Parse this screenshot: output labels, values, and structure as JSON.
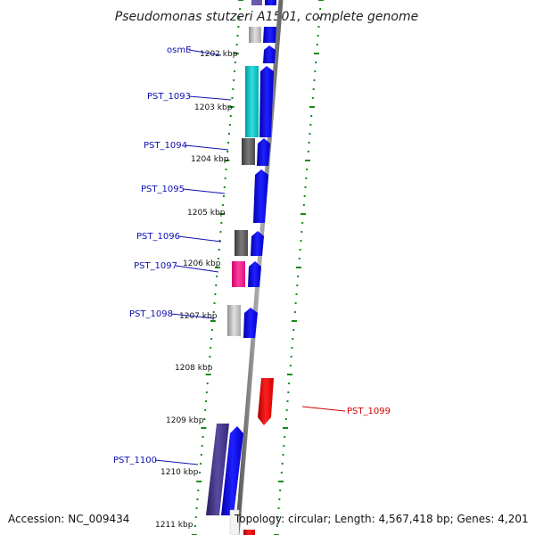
{
  "title": "Pseudomonas stutzeri A1501, complete genome",
  "footer": {
    "accession": "Accession: NC_009434",
    "topology": "Topology: circular; Length: 4,567,418 bp; Genes: 4,201"
  },
  "kbp_ticks": [
    "1202 kbp",
    "1203 kbp",
    "1204 kbp",
    "1205 kbp",
    "1206 kbp",
    "1207 kbp",
    "1208 kbp",
    "1209 kbp",
    "1210 kbp",
    "1211 kbp"
  ],
  "genes": [
    {
      "label": "osmE",
      "color": "#0000ee",
      "cog_color": null
    },
    {
      "label": "PST_1093",
      "color": "#0000ee",
      "cog_color": "#00c0c0"
    },
    {
      "label": "PST_1094",
      "color": "#0000ee",
      "cog_color": "#555555"
    },
    {
      "label": "PST_1095",
      "color": "#0000ee",
      "cog_color": null
    },
    {
      "label": "PST_1096",
      "color": "#0000ee",
      "cog_color": "#555555"
    },
    {
      "label": "PST_1097",
      "color": "#0000ee",
      "cog_color": "#ff1493"
    },
    {
      "label": "PST_1098",
      "color": "#0000ee",
      "cog_color": "#b0b0b0"
    },
    {
      "label": "PST_1099",
      "color": "#ee0000",
      "cog_color": null
    },
    {
      "label": "PST_1100",
      "color": "#0000ee",
      "cog_color": "#3d2f7a"
    }
  ],
  "colors": {
    "backbone": "#8a8a8a",
    "gc_dots": "#1a8a1a",
    "forward_gene": "#0000ee",
    "reverse_gene": "#ee0000",
    "label_blue": "#1010b0",
    "label_red": "#d00000"
  }
}
